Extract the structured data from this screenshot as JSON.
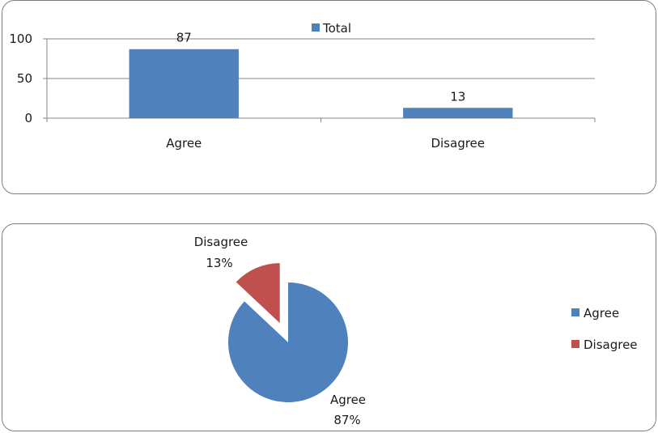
{
  "colors": {
    "agree": "#4f81bd",
    "disagree": "#c0504d",
    "axis": "#868686",
    "grid": "#868686"
  },
  "chart_data": [
    {
      "type": "bar",
      "categories": [
        "Agree",
        "Disagree"
      ],
      "series": [
        {
          "name": "Total",
          "values": [
            87,
            13
          ]
        }
      ],
      "ylim": [
        0,
        100
      ],
      "yticks": [
        "0",
        "50",
        "100"
      ],
      "data_labels": [
        "87",
        "13"
      ],
      "grid": true,
      "legend": "top-center"
    },
    {
      "type": "pie",
      "labels": [
        "Agree",
        "Disagree"
      ],
      "values": [
        87,
        13
      ],
      "percent_labels": [
        "87%",
        "13%"
      ],
      "exploded": [
        "Disagree"
      ],
      "legend": "right",
      "legend_entries": [
        "Agree",
        "Disagree"
      ]
    }
  ]
}
